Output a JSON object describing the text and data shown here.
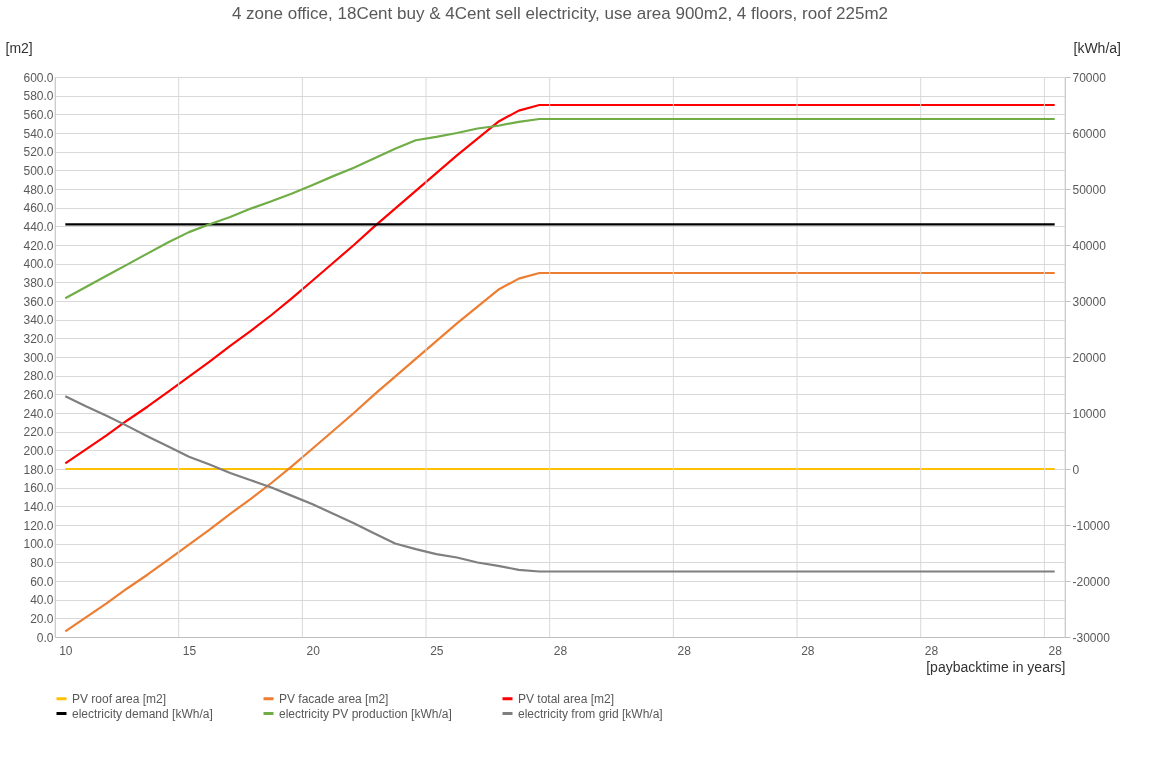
{
  "chart_data": {
    "type": "line",
    "title": "4 zone office, 18Cent buy & 4Cent sell electricity, use area 900m2, 4 floors, roof 225m2",
    "xlabel": "[paybacktime in years]",
    "ylabel": "[m2]",
    "y2label": "[kWh/a]",
    "categories": [
      "10",
      null,
      null,
      null,
      null,
      null,
      "15",
      null,
      null,
      null,
      null,
      null,
      "20",
      null,
      null,
      null,
      null,
      null,
      "25",
      null,
      null,
      null,
      null,
      null,
      "28",
      null,
      null,
      null,
      null,
      null,
      "28",
      null,
      null,
      null,
      null,
      null,
      "28",
      null,
      null,
      null,
      null,
      null,
      "28",
      null,
      null,
      null,
      null,
      null,
      "28"
    ],
    "series": [
      {
        "name": "PV roof area  [m2]",
        "color": "#ffc000",
        "values": [
          180,
          180,
          180,
          180,
          180,
          180,
          180,
          180,
          180,
          180,
          180,
          180,
          180,
          180,
          180,
          180,
          180,
          180,
          180,
          180,
          180,
          180,
          180,
          180,
          180,
          180,
          180,
          180,
          180,
          180,
          180,
          180,
          180,
          180,
          180,
          180,
          180,
          180,
          180,
          180,
          180,
          180,
          180,
          180,
          180,
          180,
          180,
          180,
          180
        ]
      },
      {
        "name": "PV facade area [m2]",
        "color": "#ed7d31",
        "values": [
          6,
          21,
          36,
          52,
          67,
          83,
          99,
          115,
          132,
          148,
          165,
          183,
          202,
          221,
          240,
          260,
          279,
          298,
          317,
          336,
          354,
          372,
          384,
          390,
          390,
          390,
          390,
          390,
          390,
          390,
          390,
          390,
          390,
          390,
          390,
          390,
          390,
          390,
          390,
          390,
          390,
          390,
          390,
          390,
          390,
          390,
          390,
          390,
          390
        ]
      },
      {
        "name": "PV total area [m2]",
        "color": "#ff0000",
        "values": [
          186,
          201,
          216,
          232,
          247,
          263,
          279,
          295,
          312,
          328,
          345,
          363,
          382,
          401,
          420,
          440,
          459,
          478,
          497,
          516,
          534,
          552,
          564,
          570,
          570,
          570,
          570,
          570,
          570,
          570,
          570,
          570,
          570,
          570,
          570,
          570,
          570,
          570,
          570,
          570,
          570,
          570,
          570,
          570,
          570,
          570,
          570,
          570,
          570
        ]
      },
      {
        "name": "electricity  demand [kWh/a]",
        "color": "#000000",
        "axis": "y2",
        "values": [
          43700,
          43700,
          43700,
          43700,
          43700,
          43700,
          43700,
          43700,
          43700,
          43700,
          43700,
          43700,
          43700,
          43700,
          43700,
          43700,
          43700,
          43700,
          43700,
          43700,
          43700,
          43700,
          43700,
          43700,
          43700,
          43700,
          43700,
          43700,
          43700,
          43700,
          43700,
          43700,
          43700,
          43700,
          43700,
          43700,
          43700,
          43700,
          43700,
          43700,
          43700,
          43700,
          43700,
          43700,
          43700,
          43700,
          43700,
          43700,
          43700
        ]
      },
      {
        "name": "electricity  PV production [kWh/a]",
        "color": "#70ad47",
        "axis": "y2",
        "values": [
          30500,
          32500,
          34500,
          36500,
          38500,
          40500,
          42300,
          43700,
          45000,
          46500,
          47800,
          49200,
          50700,
          52300,
          53800,
          55500,
          57200,
          58700,
          59300,
          60000,
          60800,
          61300,
          62000,
          62500,
          62500,
          62500,
          62500,
          62500,
          62500,
          62500,
          62500,
          62500,
          62500,
          62500,
          62500,
          62500,
          62500,
          62500,
          62500,
          62500,
          62500,
          62500,
          62500,
          62500,
          62500,
          62500,
          62500,
          62500,
          62500
        ]
      },
      {
        "name": "electricity  from grid [kWh/a]",
        "color": "#7f7f7f",
        "axis": "y2",
        "values": [
          13000,
          11200,
          9500,
          7700,
          5800,
          4000,
          2200,
          800,
          -700,
          -2000,
          -3300,
          -4800,
          -6300,
          -8000,
          -9700,
          -11500,
          -13300,
          -14300,
          -15200,
          -15800,
          -16700,
          -17300,
          -18000,
          -18300,
          -18300,
          -18300,
          -18300,
          -18300,
          -18300,
          -18300,
          -18300,
          -18300,
          -18300,
          -18300,
          -18300,
          -18300,
          -18300,
          -18300,
          -18300,
          -18300,
          -18300,
          -18300,
          -18300,
          -18300,
          -18300,
          -18300,
          -18300,
          -18300,
          -18300
        ]
      }
    ],
    "ylim": [
      0,
      600
    ],
    "yticks": [
      {
        "value": 0,
        "label": "0.0"
      },
      {
        "value": 20,
        "label": "20.0"
      },
      {
        "value": 40,
        "label": "40.0"
      },
      {
        "value": 60,
        "label": "60.0"
      },
      {
        "value": 80,
        "label": "80.0"
      },
      {
        "value": 100,
        "label": "100.0"
      },
      {
        "value": 120,
        "label": "120.0"
      },
      {
        "value": 140,
        "label": "140.0"
      },
      {
        "value": 160,
        "label": "160.0"
      },
      {
        "value": 180,
        "label": "180.0"
      },
      {
        "value": 200,
        "label": "200.0"
      },
      {
        "value": 220,
        "label": "220.0"
      },
      {
        "value": 240,
        "label": "240.0"
      },
      {
        "value": 260,
        "label": "260.0"
      },
      {
        "value": 280,
        "label": "280.0"
      },
      {
        "value": 300,
        "label": "300.0"
      },
      {
        "value": 320,
        "label": "320.0"
      },
      {
        "value": 340,
        "label": "340.0"
      },
      {
        "value": 360,
        "label": "360.0"
      },
      {
        "value": 380,
        "label": "380.0"
      },
      {
        "value": 400,
        "label": "400.0"
      },
      {
        "value": 420,
        "label": "420.0"
      },
      {
        "value": 440,
        "label": "440.0"
      },
      {
        "value": 460,
        "label": "460.0"
      },
      {
        "value": 480,
        "label": "480.0"
      },
      {
        "value": 500,
        "label": "500.0"
      },
      {
        "value": 520,
        "label": "520.0"
      },
      {
        "value": 540,
        "label": "540.0"
      },
      {
        "value": 560,
        "label": "560.0"
      },
      {
        "value": 580,
        "label": "580.0"
      },
      {
        "value": 600,
        "label": "600.0"
      }
    ],
    "y2lim": [
      -30000,
      70000
    ],
    "y2ticks": [
      -30000,
      -20000,
      -10000,
      0,
      10000,
      20000,
      30000,
      40000,
      50000,
      60000,
      70000
    ],
    "grid": true,
    "legend": "bottom",
    "marker": "none",
    "line_style": "solid"
  }
}
